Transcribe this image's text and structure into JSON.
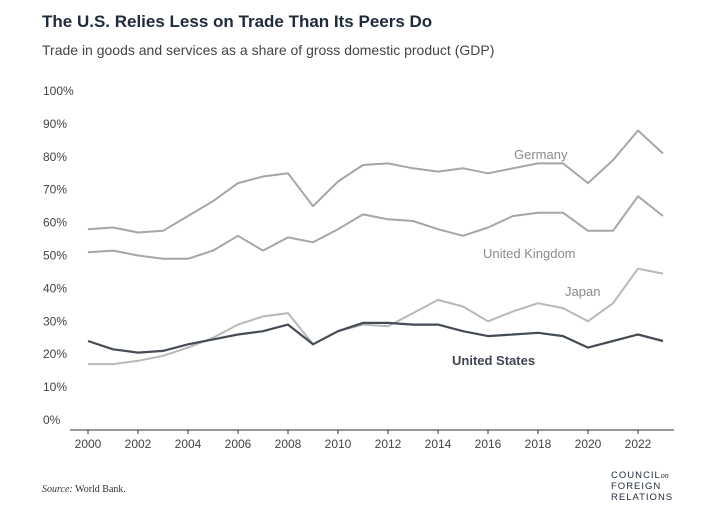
{
  "chart_data": {
    "type": "line",
    "title": "The U.S. Relies Less on Trade Than Its Peers Do",
    "subtitle": "Trade in goods and services as a share of gross domestic product (GDP)",
    "xlabel": "",
    "ylabel": "",
    "ylim": [
      0,
      100
    ],
    "xlim": [
      2000,
      2023
    ],
    "y_ticks": [
      "0%",
      "10%",
      "20%",
      "30%",
      "40%",
      "50%",
      "60%",
      "70%",
      "80%",
      "90%",
      "100%"
    ],
    "x_ticks": [
      "2000",
      "2002",
      "2004",
      "2006",
      "2008",
      "2010",
      "2012",
      "2014",
      "2016",
      "2018",
      "2020",
      "2022"
    ],
    "grid": false,
    "legend": "inline labels",
    "x": [
      2000,
      2001,
      2002,
      2003,
      2004,
      2005,
      2006,
      2007,
      2008,
      2009,
      2010,
      2011,
      2012,
      2013,
      2014,
      2015,
      2016,
      2017,
      2018,
      2019,
      2020,
      2021,
      2022,
      2023
    ],
    "series": [
      {
        "name": "Germany",
        "color": "#a6a6a6",
        "values": [
          58,
          58.5,
          57,
          57.5,
          62,
          66.5,
          72,
          74,
          75,
          65,
          72.5,
          77.5,
          78,
          76.5,
          75.5,
          76.5,
          75,
          76.5,
          78,
          78,
          72,
          79,
          88,
          81
        ]
      },
      {
        "name": "United Kingdom",
        "color": "#a6a6a6",
        "values": [
          51,
          51.5,
          50,
          49,
          49,
          51.5,
          56,
          51.5,
          55.5,
          54,
          58,
          62.5,
          61,
          60.5,
          58,
          56,
          58.5,
          62,
          63,
          63,
          57.5,
          57.5,
          68,
          62
        ]
      },
      {
        "name": "Japan",
        "color": "#b8b8b8",
        "values": [
          17,
          17,
          18,
          19.5,
          22,
          25,
          29,
          31.5,
          32.5,
          23,
          27,
          29,
          28.5,
          32.5,
          36.5,
          34.5,
          30,
          33,
          35.5,
          34,
          30,
          35.5,
          46,
          44.5
        ]
      },
      {
        "name": "United States",
        "color": "#454c55",
        "values": [
          24,
          21.5,
          20.5,
          21,
          23,
          24.5,
          26,
          27,
          29,
          23,
          27,
          29.5,
          29.5,
          29,
          29,
          27,
          25.5,
          26,
          26.5,
          25.5,
          22,
          24,
          26,
          24
        ]
      }
    ]
  },
  "source": {
    "label": "Source:",
    "text": "World Bank."
  },
  "logo": {
    "line1": "COUNCIL",
    "on": "on",
    "line2": "FOREIGN",
    "line3": "RELATIONS"
  }
}
